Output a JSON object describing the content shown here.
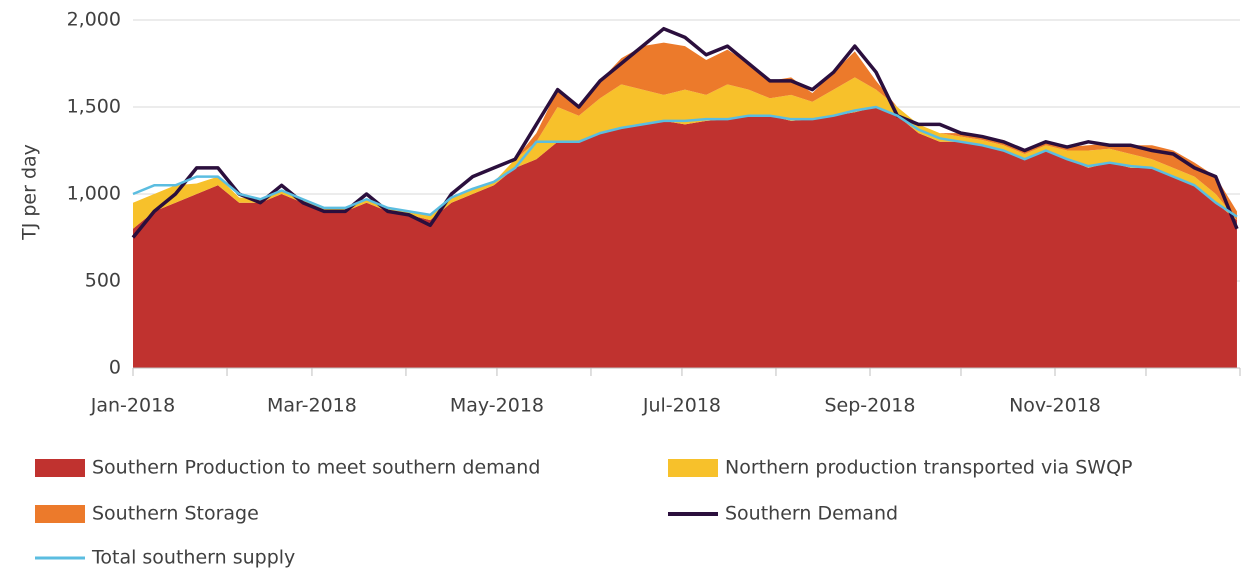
{
  "chart_data": {
    "type": "stacked_area_line",
    "ylabel": "TJ per day",
    "x": [
      0,
      7,
      14,
      21,
      28,
      35,
      42,
      49,
      56,
      63,
      70,
      77,
      84,
      91,
      98,
      105,
      112,
      119,
      126,
      133,
      140,
      147,
      154,
      161,
      168,
      175,
      182,
      189,
      196,
      203,
      210,
      217,
      224,
      231,
      238,
      245,
      252,
      259,
      266,
      273,
      280,
      287,
      294,
      301,
      308,
      315,
      322,
      329,
      336,
      343,
      350,
      357,
      364
    ],
    "xlim": [
      0,
      365
    ],
    "xticks": [
      {
        "value": 0,
        "label": "Jan-2018"
      },
      {
        "value": 31,
        "label": null
      },
      {
        "value": 59,
        "label": "Mar-2018"
      },
      {
        "value": 90,
        "label": null
      },
      {
        "value": 120,
        "label": "May-2018"
      },
      {
        "value": 151,
        "label": null
      },
      {
        "value": 181,
        "label": "Jul-2018"
      },
      {
        "value": 212,
        "label": null
      },
      {
        "value": 243,
        "label": "Sep-2018"
      },
      {
        "value": 273,
        "label": null
      },
      {
        "value": 304,
        "label": "Nov-2018"
      },
      {
        "value": 334,
        "label": null
      },
      {
        "value": 365,
        "label": null
      }
    ],
    "ylim": [
      0,
      2000
    ],
    "yticks": [
      0,
      500,
      {
        "value": 1000,
        "label": "1,000"
      },
      {
        "value": 1500,
        "label": "1,500"
      },
      {
        "value": 2000,
        "label": "2,000"
      }
    ],
    "grid": true,
    "series": [
      {
        "name": "Southern Production to meet southern demand",
        "kind": "area",
        "color": "#c0322f",
        "values": [
          800,
          900,
          950,
          1000,
          1050,
          950,
          950,
          1000,
          950,
          900,
          900,
          950,
          900,
          880,
          850,
          950,
          1000,
          1050,
          1150,
          1200,
          1300,
          1300,
          1350,
          1380,
          1400,
          1420,
          1400,
          1420,
          1430,
          1450,
          1450,
          1420,
          1430,
          1450,
          1470,
          1500,
          1450,
          1350,
          1300,
          1300,
          1280,
          1250,
          1200,
          1250,
          1200,
          1150,
          1180,
          1150,
          1150,
          1100,
          1050,
          950,
          850
        ]
      },
      {
        "name": "Northern production transported via SWQP",
        "kind": "area",
        "color": "#f7c12b",
        "values": [
          150,
          100,
          100,
          60,
          50,
          30,
          20,
          20,
          20,
          20,
          20,
          20,
          20,
          20,
          30,
          30,
          30,
          20,
          50,
          100,
          200,
          150,
          200,
          250,
          200,
          150,
          200,
          150,
          200,
          150,
          100,
          150,
          100,
          150,
          200,
          100,
          50,
          50,
          50,
          30,
          30,
          30,
          30,
          30,
          50,
          100,
          80,
          80,
          50,
          50,
          50,
          50,
          0
        ]
      },
      {
        "name": "Southern Storage",
        "kind": "area",
        "color": "#ec7a2b",
        "values": [
          0,
          0,
          0,
          0,
          0,
          0,
          0,
          0,
          0,
          0,
          0,
          0,
          0,
          0,
          0,
          0,
          0,
          0,
          0,
          50,
          100,
          50,
          100,
          150,
          250,
          300,
          250,
          200,
          200,
          150,
          100,
          100,
          50,
          100,
          150,
          50,
          0,
          0,
          0,
          20,
          20,
          30,
          20,
          20,
          20,
          30,
          30,
          50,
          80,
          100,
          80,
          100,
          50
        ]
      },
      {
        "name": "Southern Demand",
        "kind": "line",
        "color": "#2b0f3d",
        "values": [
          750,
          900,
          1000,
          1150,
          1150,
          1000,
          950,
          1050,
          950,
          900,
          900,
          1000,
          900,
          880,
          820,
          1000,
          1100,
          1150,
          1200,
          1400,
          1600,
          1500,
          1650,
          1750,
          1850,
          1950,
          1900,
          1800,
          1850,
          1750,
          1650,
          1650,
          1600,
          1700,
          1850,
          1700,
          1450,
          1400,
          1400,
          1350,
          1330,
          1300,
          1250,
          1300,
          1270,
          1300,
          1280,
          1280,
          1250,
          1230,
          1150,
          1100,
          800
        ]
      },
      {
        "name": "Total southern supply",
        "kind": "line",
        "color": "#5bbde0",
        "values": [
          1000,
          1050,
          1050,
          1100,
          1100,
          1000,
          970,
          1020,
          970,
          920,
          920,
          970,
          920,
          900,
          880,
          980,
          1030,
          1070,
          1150,
          1300,
          1300,
          1300,
          1350,
          1380,
          1400,
          1420,
          1420,
          1430,
          1430,
          1450,
          1450,
          1430,
          1430,
          1450,
          1480,
          1500,
          1450,
          1370,
          1320,
          1300,
          1280,
          1250,
          1200,
          1250,
          1200,
          1160,
          1180,
          1160,
          1150,
          1100,
          1050,
          950,
          870
        ]
      }
    ]
  }
}
